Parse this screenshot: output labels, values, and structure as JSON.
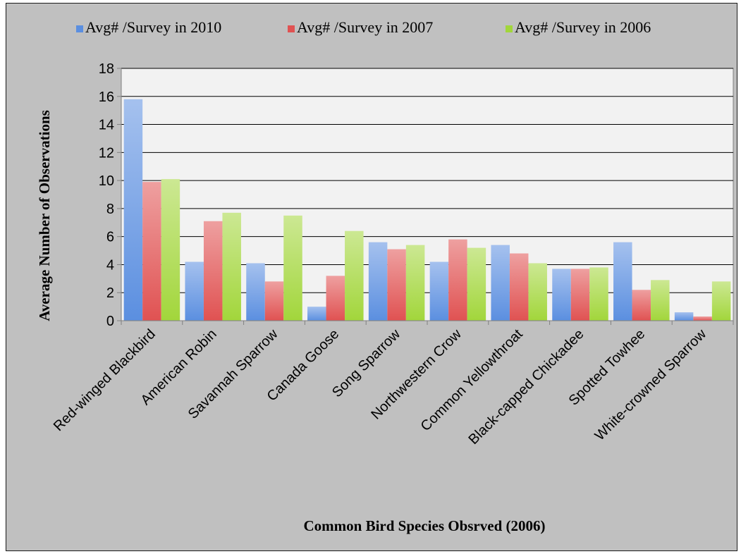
{
  "chart_data": {
    "type": "bar",
    "title": "",
    "xlabel": "Common Bird Species Obsrved (2006)",
    "ylabel": "Average Number of Observations",
    "ylim": [
      0,
      18
    ],
    "yticks": [
      "0",
      "2",
      "4",
      "6",
      "8",
      "10",
      "12",
      "14",
      "16",
      "18"
    ],
    "grid": true,
    "legend_position": "top",
    "categories": [
      "Red-winged Blackbird",
      "American Robin",
      "Savannah Sparrow",
      "Canada Goose",
      "Song Sparrow",
      "Northwestern Crow",
      "Common Yellowthroat",
      "Black-capped Chickadee",
      "Spotted Towhee",
      "White-crowned Sparrow"
    ],
    "series": [
      {
        "name": "Avg# /Survey in 2010",
        "color": "#5b8fe0",
        "values": [
          15.8,
          4.2,
          4.1,
          1.0,
          5.6,
          4.2,
          5.4,
          3.7,
          5.6,
          0.6
        ]
      },
      {
        "name": "Avg# /Survey in 2007",
        "color": "#e05252",
        "values": [
          9.9,
          7.1,
          2.8,
          3.2,
          5.1,
          5.8,
          4.8,
          3.7,
          2.2,
          0.3
        ]
      },
      {
        "name": "Avg# /Survey in 2006",
        "color": "#a2d63b",
        "values": [
          10.1,
          7.7,
          7.5,
          6.4,
          5.4,
          5.2,
          4.1,
          3.8,
          2.9,
          2.8
        ]
      }
    ]
  }
}
